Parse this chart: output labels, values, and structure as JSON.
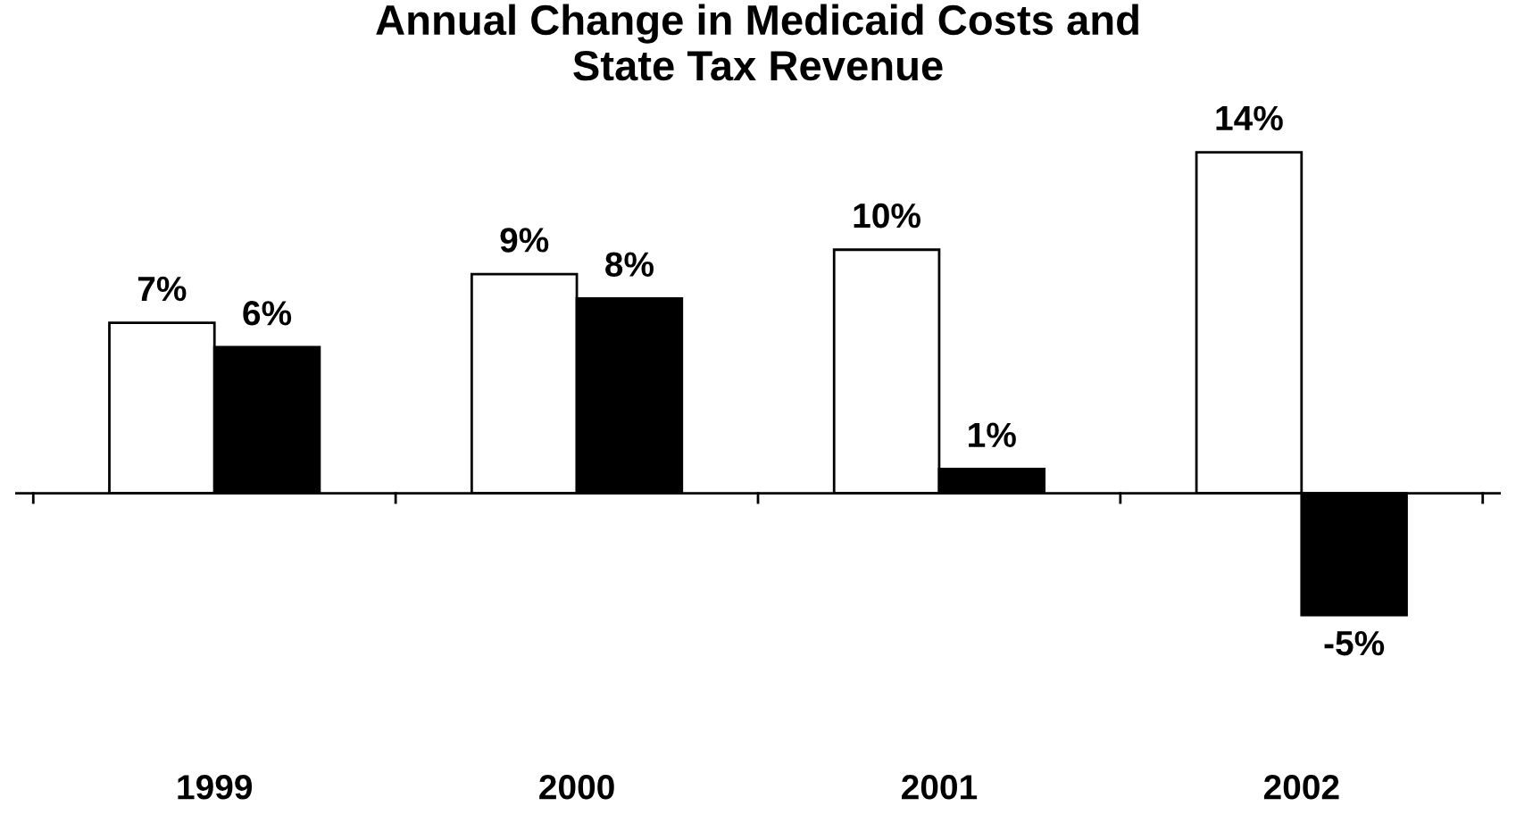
{
  "chart_data": {
    "type": "bar",
    "title": "Annual Change in Medicaid Costs and\nState Tax Revenue",
    "categories": [
      "1999",
      "2000",
      "2001",
      "2002"
    ],
    "series": [
      {
        "color": "#ffffff",
        "values": [
          7,
          9,
          10,
          14
        ],
        "value_labels": [
          "7%",
          "9%",
          "10%",
          "14%"
        ]
      },
      {
        "color": "#000000",
        "values": [
          6,
          8,
          1,
          -5
        ],
        "value_labels": [
          "6%",
          "8%",
          "1%",
          "-5%"
        ]
      }
    ]
  }
}
